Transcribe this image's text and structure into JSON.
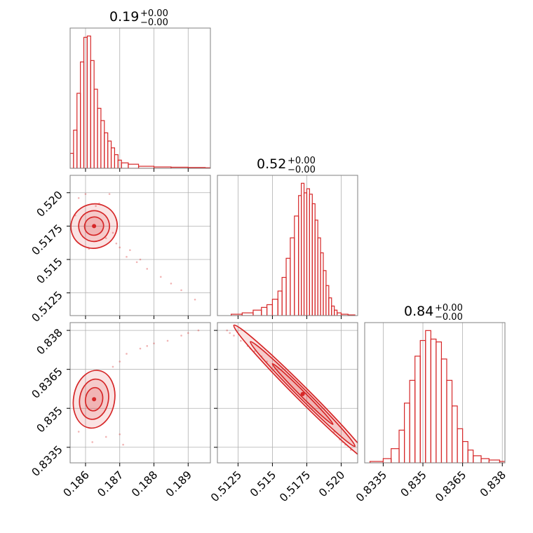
{
  "figure": {
    "accent_color": "#d62728",
    "grid": true,
    "panel_frame_color": "#808080"
  },
  "chart_data": [
    {
      "type": "histogram",
      "panel": "param-1-marginal",
      "title_value": "0.19",
      "title_plus": "+0.00",
      "title_minus": "−0.00",
      "x": [
        0.18555,
        0.18565,
        0.18575,
        0.18585,
        0.18595,
        0.18605,
        0.18615,
        0.18625,
        0.18635,
        0.18645,
        0.18655,
        0.18665,
        0.18675,
        0.18685,
        0.18695,
        0.18705,
        0.18725,
        0.18755,
        0.188,
        0.1885,
        0.189,
        0.1895
      ],
      "values": [
        0.11,
        0.28,
        0.55,
        0.78,
        0.96,
        0.97,
        0.79,
        0.58,
        0.44,
        0.35,
        0.26,
        0.2,
        0.15,
        0.1,
        0.06,
        0.04,
        0.03,
        0.015,
        0.01,
        0.008,
        0.006,
        0.004
      ],
      "xlim": [
        0.18555,
        0.18965
      ],
      "xticks": [
        0.186,
        0.187,
        0.188,
        0.189
      ]
    },
    {
      "type": "histogram",
      "panel": "param-2-marginal",
      "title_value": "0.52",
      "title_plus": "+0.00",
      "title_minus": "−0.00",
      "x": [
        0.512,
        0.5128,
        0.5136,
        0.5142,
        0.5146,
        0.515,
        0.5154,
        0.5157,
        0.516,
        0.5163,
        0.5166,
        0.5169,
        0.5171,
        0.5173,
        0.5175,
        0.5177,
        0.5179,
        0.5181,
        0.5183,
        0.5185,
        0.5187,
        0.5189,
        0.5191,
        0.5193,
        0.5195,
        0.5197,
        0.52,
        0.5205
      ],
      "values": [
        0.01,
        0.02,
        0.04,
        0.06,
        0.08,
        0.12,
        0.18,
        0.28,
        0.42,
        0.57,
        0.73,
        0.88,
        0.97,
        0.9,
        0.93,
        0.89,
        0.82,
        0.7,
        0.57,
        0.46,
        0.33,
        0.22,
        0.13,
        0.07,
        0.04,
        0.02,
        0.01,
        0.005
      ],
      "xlim": [
        0.511,
        0.5212
      ],
      "xticks": [
        0.5125,
        0.515,
        0.5175,
        0.52
      ]
    },
    {
      "type": "histogram",
      "panel": "param-3-marginal",
      "title_value": "0.84",
      "title_plus": "+0.00",
      "title_minus": "−0.00",
      "x": [
        0.833,
        0.8335,
        0.8338,
        0.8341,
        0.8343,
        0.8345,
        0.8347,
        0.8349,
        0.8351,
        0.8353,
        0.8355,
        0.8357,
        0.8359,
        0.8361,
        0.8363,
        0.8365,
        0.8367,
        0.8369,
        0.8372,
        0.8375,
        0.8379
      ],
      "values": [
        0.01,
        0.03,
        0.1,
        0.23,
        0.42,
        0.58,
        0.75,
        0.86,
        0.93,
        0.87,
        0.85,
        0.73,
        0.58,
        0.4,
        0.24,
        0.15,
        0.09,
        0.05,
        0.03,
        0.02,
        0.01
      ],
      "xlim": [
        0.8328,
        0.8381
      ],
      "xticks": [
        0.8335,
        0.835,
        0.8365,
        0.838
      ]
    },
    {
      "type": "scatter",
      "panel": "param-1-vs-param-2",
      "xlim": [
        0.18555,
        0.18965
      ],
      "ylim": [
        0.5108,
        0.5213
      ],
      "yticks": [
        0.5125,
        0.515,
        0.5175,
        0.52
      ],
      "center": [
        0.18625,
        0.5175
      ],
      "contour_levels": [
        {
          "rx": 0.00028,
          "ry": 0.00068
        },
        {
          "rx": 0.00045,
          "ry": 0.00115
        },
        {
          "rx": 0.00068,
          "ry": 0.00165
        }
      ],
      "points": [
        [
          0.1858,
          0.5196
        ],
        [
          0.186,
          0.5199
        ],
        [
          0.1863,
          0.519
        ],
        [
          0.1866,
          0.5166
        ],
        [
          0.1869,
          0.5162
        ],
        [
          0.187,
          0.5159
        ],
        [
          0.1872,
          0.5152
        ],
        [
          0.1875,
          0.5148
        ],
        [
          0.1878,
          0.5143
        ],
        [
          0.1882,
          0.5137
        ],
        [
          0.1885,
          0.5132
        ],
        [
          0.1888,
          0.5127
        ],
        [
          0.1892,
          0.512
        ],
        [
          0.1857,
          0.5183
        ],
        [
          0.1864,
          0.5192
        ],
        [
          0.1868,
          0.517
        ],
        [
          0.1867,
          0.5199
        ],
        [
          0.1861,
          0.5158
        ],
        [
          0.1873,
          0.5157
        ],
        [
          0.1876,
          0.515
        ]
      ]
    },
    {
      "type": "scatter",
      "panel": "param-1-vs-param-3",
      "xlim": [
        0.18555,
        0.18965
      ],
      "ylim": [
        0.8329,
        0.8383
      ],
      "yticks": [
        0.8335,
        0.835,
        0.8365,
        0.838
      ],
      "center": [
        0.18625,
        0.83535
      ],
      "contour_levels": [
        {
          "rx": 0.00025,
          "ry": 0.00045
        },
        {
          "rx": 0.00042,
          "ry": 0.00078
        },
        {
          "rx": 0.0006,
          "ry": 0.00112
        }
      ],
      "points": [
        [
          0.1872,
          0.8371
        ],
        [
          0.1876,
          0.8373
        ],
        [
          0.188,
          0.8375
        ],
        [
          0.1884,
          0.8376
        ],
        [
          0.1888,
          0.8378
        ],
        [
          0.1893,
          0.838
        ],
        [
          0.187,
          0.8368
        ],
        [
          0.1868,
          0.8366
        ],
        [
          0.1858,
          0.8341
        ],
        [
          0.1862,
          0.8337
        ],
        [
          0.1866,
          0.8339
        ],
        [
          0.187,
          0.834
        ],
        [
          0.1871,
          0.8336
        ],
        [
          0.1878,
          0.8374
        ],
        [
          0.189,
          0.8379
        ]
      ]
    },
    {
      "type": "scatter",
      "panel": "param-2-vs-param-3",
      "xlim": [
        0.511,
        0.5212
      ],
      "ylim": [
        0.8329,
        0.8383
      ],
      "center": [
        0.5172,
        0.83555
      ],
      "contour_levels": [
        {
          "length": 0.0022,
          "width": 6e-05
        },
        {
          "length": 0.0038,
          "width": 0.00011
        },
        {
          "length": 0.005,
          "width": 0.00016
        }
      ],
      "points": [
        [
          0.5117,
          0.838
        ],
        [
          0.5122,
          0.8378
        ],
        [
          0.5127,
          0.8376
        ],
        [
          0.5132,
          0.8374
        ],
        [
          0.5137,
          0.8372
        ],
        [
          0.5142,
          0.837
        ],
        [
          0.5146,
          0.8368
        ],
        [
          0.5195,
          0.8341
        ],
        [
          0.5199,
          0.8338
        ],
        [
          0.5203,
          0.8336
        ],
        [
          0.5207,
          0.8334
        ],
        [
          0.5119,
          0.8379
        ],
        [
          0.5134,
          0.8373
        ],
        [
          0.5201,
          0.8337
        ]
      ]
    }
  ]
}
